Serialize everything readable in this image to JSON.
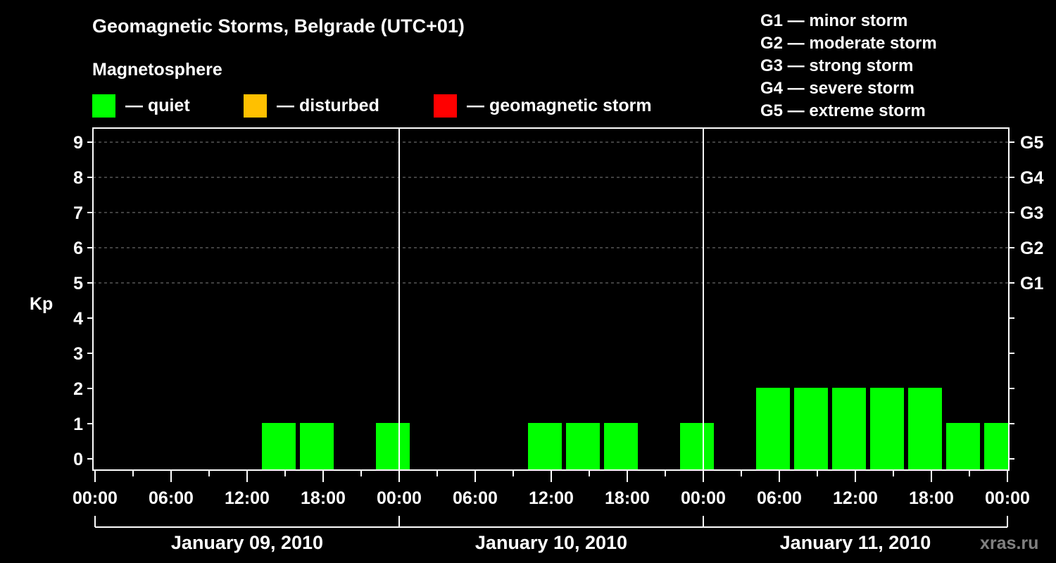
{
  "header": {
    "title": "Geomagnetic Storms, Belgrade (UTC+01)",
    "subtitle": "Magnetosphere"
  },
  "legend": [
    {
      "label": "— quiet",
      "color": "#00ff00"
    },
    {
      "label": "— disturbed",
      "color": "#ffc000"
    },
    {
      "label": "— geomagnetic storm",
      "color": "#ff0000"
    }
  ],
  "storm_scale": [
    "G1 — minor storm",
    "G2 — moderate storm",
    "G3 — strong storm",
    "G4 — severe storm",
    "G5 — extreme storm"
  ],
  "watermark": "xras.ru",
  "chart_data": {
    "type": "bar",
    "title": "Geomagnetic Storms, Belgrade (UTC+01)",
    "ylabel": "Kp",
    "xlabel": "",
    "ylim": [
      0,
      9
    ],
    "yticks": [
      0,
      1,
      2,
      3,
      4,
      5,
      6,
      7,
      8,
      9
    ],
    "right_axis_labels": [
      {
        "kp": 5,
        "label": "G1"
      },
      {
        "kp": 6,
        "label": "G2"
      },
      {
        "kp": 7,
        "label": "G3"
      },
      {
        "kp": 8,
        "label": "G4"
      },
      {
        "kp": 9,
        "label": "G5"
      }
    ],
    "xtick_labels": [
      "00:00",
      "06:00",
      "12:00",
      "18:00",
      "00:00",
      "06:00",
      "12:00",
      "18:00",
      "00:00",
      "06:00",
      "12:00",
      "18:00",
      "00:00"
    ],
    "days": [
      "January 09, 2010",
      "January 10, 2010",
      "January 11, 2010"
    ],
    "grid": {
      "dashed_at_kp": [
        5,
        6,
        7,
        8,
        9
      ]
    },
    "interval_hours": 3,
    "bar_offset_hours": 1,
    "categories": [
      "Jan 09 01:00",
      "Jan 09 04:00",
      "Jan 09 07:00",
      "Jan 09 10:00",
      "Jan 09 13:00",
      "Jan 09 16:00",
      "Jan 09 19:00",
      "Jan 09 22:00",
      "Jan 10 01:00",
      "Jan 10 04:00",
      "Jan 10 07:00",
      "Jan 10 10:00",
      "Jan 10 13:00",
      "Jan 10 16:00",
      "Jan 10 19:00",
      "Jan 10 22:00",
      "Jan 11 01:00",
      "Jan 11 04:00",
      "Jan 11 07:00",
      "Jan 11 10:00",
      "Jan 11 13:00",
      "Jan 11 16:00",
      "Jan 11 19:00",
      "Jan 11 22:00"
    ],
    "values": [
      0,
      0,
      0,
      0,
      1,
      1,
      0,
      1,
      0,
      0,
      0,
      1,
      1,
      1,
      0,
      1,
      0,
      2,
      2,
      2,
      2,
      2,
      1,
      1
    ],
    "bar_color_rule": {
      "quiet_below": 4,
      "quiet": "#00ff00",
      "disturbed": "#ffc000",
      "storm": "#ff0000"
    }
  }
}
